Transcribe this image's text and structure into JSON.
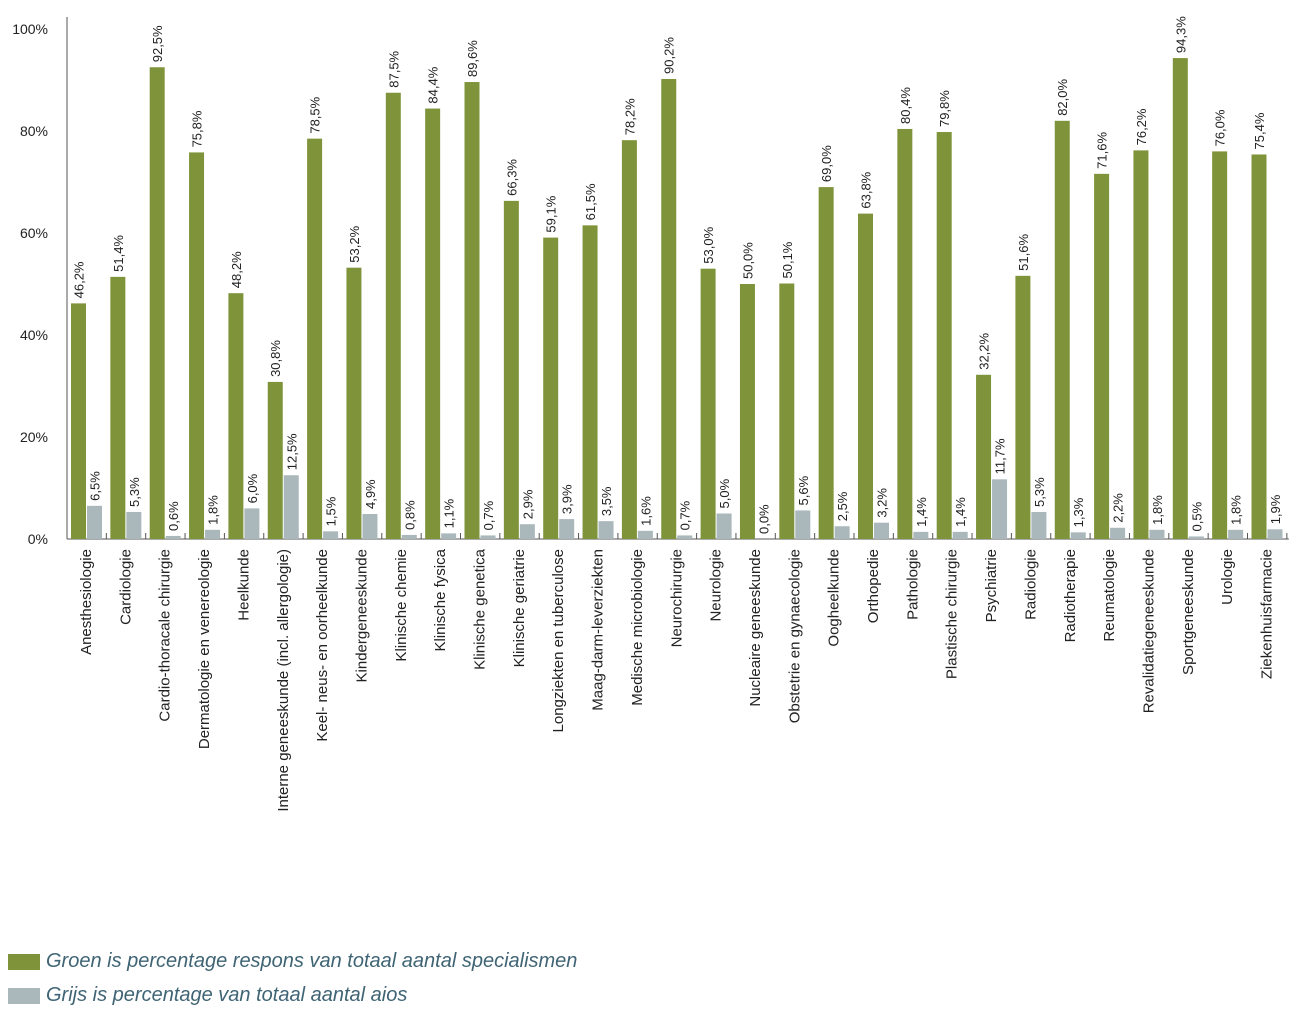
{
  "chart_data": {
    "type": "bar",
    "ylim": [
      0,
      100
    ],
    "yticks": [
      "0%",
      "20%",
      "40%",
      "60%",
      "80%",
      "100%"
    ],
    "categories": [
      "Anesthesiologie",
      "Cardiologie",
      "Cardio-thoracale chirurgie",
      "Dermatologie en venereologie",
      "Heelkunde",
      "Interne geneeskunde (incl. allergologie)",
      "Keel- neus- en oorheelkunde",
      "Kindergeneeskunde",
      "Klinische chemie",
      "Klinische fysica",
      "Klinische genetica",
      "Klinische geriatrie",
      "Longziekten en tuberculose",
      "Maag-darm-leverziekten",
      "Medische microbiologie",
      "Neurochirurgie",
      "Neurologie",
      "Nucleaire geneeskunde",
      "Obstetrie en gynaecologie",
      "Oogheelkunde",
      "Orthopedie",
      "Pathologie",
      "Plastische chirurgie",
      "Psychiatrie",
      "Radiologie",
      "Radiotherapie",
      "Reumatologie",
      "Revalidatiegeneeskunde",
      "Sportgeneeskunde",
      "Urologie",
      "Ziekenhuisfarmacie"
    ],
    "series": [
      {
        "color": "#7f943a",
        "values": [
          46.2,
          51.4,
          92.5,
          75.8,
          48.2,
          30.8,
          78.5,
          53.2,
          87.5,
          84.4,
          89.6,
          66.3,
          59.1,
          61.5,
          78.2,
          90.2,
          53.0,
          50.0,
          50.1,
          69.0,
          63.8,
          80.4,
          79.8,
          32.2,
          51.6,
          82.0,
          71.6,
          76.2,
          94.3,
          76.0,
          75.4
        ],
        "labels": [
          "46,2%",
          "51,4%",
          "92,5%",
          "75,8%",
          "48,2%",
          "30,8%",
          "78,5%",
          "53,2%",
          "87,5%",
          "84,4%",
          "89,6%",
          "66,3%",
          "59,1%",
          "61,5%",
          "78,2%",
          "90,2%",
          "53,0%",
          "50,0%",
          "50,1%",
          "69,0%",
          "63,8%",
          "80,4%",
          "79,8%",
          "32,2%",
          "51,6%",
          "82,0%",
          "71,6%",
          "76,2%",
          "94,3%",
          "76,0%",
          "75,4%"
        ]
      },
      {
        "color": "#aab7bb",
        "values": [
          6.5,
          5.3,
          0.6,
          1.8,
          6.0,
          12.5,
          1.5,
          4.9,
          0.8,
          1.1,
          0.7,
          2.9,
          3.9,
          3.5,
          1.6,
          0.7,
          5.0,
          0.0,
          5.6,
          2.5,
          3.2,
          1.4,
          1.4,
          11.7,
          5.3,
          1.3,
          2.2,
          1.8,
          0.5,
          1.8,
          1.9
        ],
        "labels": [
          "6,5%",
          "5,3%",
          "0,6%",
          "1,8%",
          "6,0%",
          "12,5%",
          "1,5%",
          "4,9%",
          "0,8%",
          "1,1%",
          "0,7%",
          "2,9%",
          "3,9%",
          "3,5%",
          "1,6%",
          "0,7%",
          "5,0%",
          "0,0%",
          "5,6%",
          "2,5%",
          "3,2%",
          "1,4%",
          "1,4%",
          "11,7%",
          "5,3%",
          "1,3%",
          "2,2%",
          "1,8%",
          "0,5%",
          "1,8%",
          "1,9%"
        ]
      }
    ],
    "legend": [
      {
        "text": "Groen is percentage respons van totaal aantal specialismen",
        "color": "#7f943a"
      },
      {
        "text": "Grijs is percentage van totaal aantal aios",
        "color": "#aab7bb"
      }
    ],
    "grid": false
  }
}
